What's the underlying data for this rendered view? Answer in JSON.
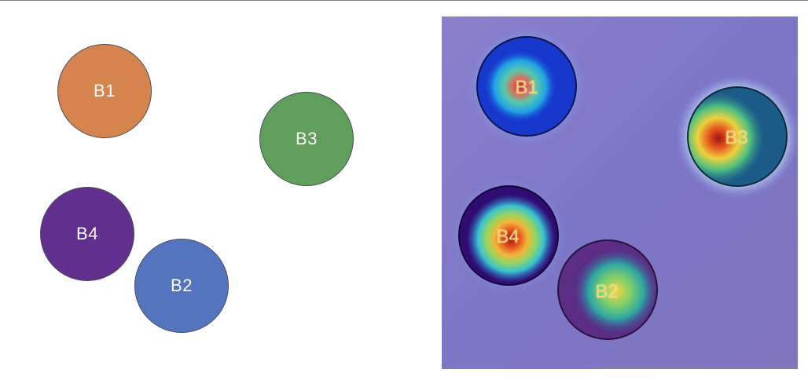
{
  "left_panel": {
    "balls": [
      {
        "key": "b1",
        "label": "B1",
        "color": "#d4844c"
      },
      {
        "key": "b2",
        "label": "B2",
        "color": "#5574bf"
      },
      {
        "key": "b3",
        "label": "B3",
        "color": "#5f9e5b"
      },
      {
        "key": "b4",
        "label": "B4",
        "color": "#612f8e"
      }
    ]
  },
  "right_panel": {
    "background": "#8278c5",
    "balls": [
      {
        "key": "b1",
        "label": "B1",
        "disc_color": "#1537c9",
        "hotspot": "red-centre"
      },
      {
        "key": "b3",
        "label": "B3",
        "disc_color": "#1e5a8a",
        "hotspot": "red-centre"
      },
      {
        "key": "b4",
        "label": "B4",
        "disc_color": "#320d74",
        "hotspot": "red-centre"
      },
      {
        "key": "b2",
        "label": "B2",
        "disc_color": "#5e2e86",
        "hotspot": "yellow-green-centre"
      }
    ]
  }
}
